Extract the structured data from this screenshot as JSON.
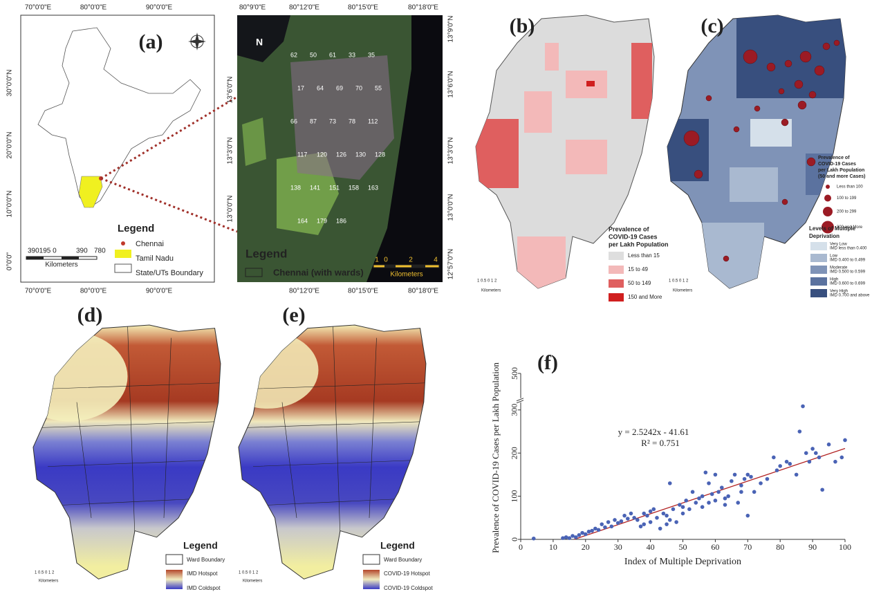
{
  "panels": {
    "a": {
      "label": "(a)",
      "lon_labels_top": [
        "70°0'0\"E",
        "80°0'0\"E",
        "90°0'0\"E"
      ],
      "lon_labels_bottom": [
        "70°0'0\"E",
        "80°0'0\"E",
        "90°0'0\"E"
      ],
      "lat_labels": [
        "30°0'0\"N",
        "20°0'0\"N",
        "10°0'0\"N",
        "0°0'0\""
      ],
      "legend_title": "Legend",
      "legend_items": [
        "Chennai",
        "Tamil Nadu",
        "State/UTs Boundary"
      ],
      "scale_labels": [
        "390195 0",
        "390",
        "780"
      ],
      "scale_unit": "Kilometers"
    },
    "satellite": {
      "lon_labels_top": [
        "80°9'0\"E",
        "80°12'0\"E",
        "80°15'0\"E",
        "80°18'0\"E"
      ],
      "lon_labels_bottom": [
        "80°12'0\"E",
        "80°15'0\"E",
        "80°18'0\"E"
      ],
      "lat_labels_right": [
        "13°9'0\"N",
        "13°6'0\"N",
        "13°3'0\"N",
        "13°0'0\"N",
        "12°57'0\"N"
      ],
      "lat_labels_left": [
        "13°6'0\"N",
        "13°3'0\"N",
        "13°0'0\"N"
      ],
      "north": "N",
      "legend_title": "Legend",
      "legend_item": "Chennai (with wards)",
      "scale_labels": [
        "1",
        "0",
        "2",
        "4"
      ],
      "scale_unit": "Kilometers",
      "ward_numbers": [
        "62",
        "50",
        "61",
        "33",
        "35",
        "17",
        "64",
        "69",
        "70",
        "55",
        "66",
        "87",
        "73",
        "78",
        "112",
        "117",
        "120",
        "126",
        "130",
        "128",
        "138",
        "141",
        "151",
        "158",
        "163",
        "164",
        "179",
        "186"
      ]
    },
    "b": {
      "label": "(b)",
      "legend_title": [
        "Prevalence of",
        "COVID-19 Cases",
        "per Lakh Population"
      ],
      "legend_items": [
        "Less than 15",
        "15 to 49",
        "50 to 149",
        "150 and More"
      ],
      "legend_colors": [
        "#dedede",
        "#f3b9b9",
        "#df5f5f",
        "#d01f1f"
      ],
      "scale_labels": "1 0.5 0   1   2",
      "scale_unit": "Kilometers"
    },
    "c": {
      "label": "(c)",
      "bubble_title": [
        "Prevalence of",
        "COVID-19 Cases",
        "per Lakh Population",
        "(50 and more Cases)"
      ],
      "bubble_items": [
        "Less than 100",
        "100 to 199",
        "200 to 299",
        "300 and More"
      ],
      "legend_title": [
        "Levels of Multiple",
        "Deprivation"
      ],
      "legend_items": [
        [
          "Very Low",
          "IMD less than 0.400"
        ],
        [
          "Low",
          "IMD 0.400 to 0.499"
        ],
        [
          "Moderate",
          "IMD 0.500 to 0.599"
        ],
        [
          "High",
          "IMD 0.600 to 0.699"
        ],
        [
          "Very High",
          "IMD 0.700 and above"
        ]
      ],
      "legend_colors": [
        "#d5e0ea",
        "#a9b9d0",
        "#7f93b7",
        "#5b729f",
        "#384f7e"
      ],
      "scale_labels": "1 0.5 0   1   2",
      "scale_unit": "Kilometers"
    },
    "d": {
      "label": "(d)",
      "legend_title": "Legend",
      "legend_items": [
        "Ward Boundary",
        "IMD Hotspot",
        "IMD Coldspot"
      ],
      "scale_labels": "1 0.5 0   1   2",
      "scale_unit": "Kilometers"
    },
    "e": {
      "label": "(e)",
      "legend_title": "Legend",
      "legend_items": [
        "Ward Boundary",
        "COVID-19 Hotspot",
        "COVID-19 Coldspot"
      ],
      "scale_labels": "1 0.5 0   1   2",
      "scale_unit": "Kilometers"
    }
  },
  "chart_data": {
    "type": "scatter",
    "title": "(f)",
    "x_label": "Index of Multiple Deprivation",
    "y_label": "Prevalence of COVID-19 Cases per Lakh Population",
    "annotations": [
      "y = 2.5242x - 41.61",
      "R² = 0.751"
    ],
    "x": [
      4,
      13,
      14,
      15,
      16,
      17,
      18,
      19,
      20,
      21,
      22,
      23,
      24,
      25,
      26,
      27,
      28,
      29,
      30,
      31,
      32,
      33,
      34,
      35,
      36,
      37,
      38,
      39,
      40,
      40,
      41,
      42,
      43,
      44,
      45,
      46,
      46,
      47,
      48,
      49,
      50,
      51,
      52,
      53,
      54,
      55,
      56,
      57,
      58,
      59,
      60,
      61,
      62,
      63,
      64,
      65,
      66,
      67,
      68,
      69,
      70,
      70,
      71,
      72,
      74,
      76,
      78,
      79,
      80,
      82,
      83,
      85,
      86,
      87,
      88,
      89,
      90,
      91,
      92,
      93,
      95,
      97,
      99,
      100,
      63,
      56,
      60,
      50,
      45,
      38,
      58,
      68
    ],
    "values": [
      2,
      3,
      5,
      3,
      8,
      5,
      10,
      15,
      12,
      18,
      20,
      25,
      22,
      35,
      28,
      40,
      30,
      45,
      38,
      42,
      55,
      48,
      60,
      50,
      45,
      30,
      35,
      55,
      65,
      40,
      70,
      50,
      25,
      60,
      55,
      45,
      130,
      70,
      40,
      80,
      60,
      90,
      70,
      110,
      85,
      95,
      75,
      155,
      130,
      105,
      90,
      110,
      120,
      95,
      100,
      135,
      150,
      85,
      125,
      140,
      150,
      55,
      145,
      110,
      130,
      140,
      190,
      160,
      170,
      180,
      175,
      150,
      250,
      320,
      200,
      180,
      210,
      200,
      190,
      115,
      220,
      180,
      190,
      230,
      80,
      100,
      150,
      75,
      35,
      60,
      85,
      110
    ],
    "color": "#4a63b5",
    "trendline": {
      "slope": 2.5242,
      "intercept": -41.61,
      "color": "#b22222"
    },
    "xlim": [
      0,
      100
    ],
    "xticks": [
      0,
      10,
      20,
      30,
      40,
      50,
      60,
      70,
      80,
      90,
      100
    ],
    "ylim": [
      0,
      500
    ],
    "yticks": [
      0,
      100,
      200,
      300,
      500
    ],
    "y_axis_break": true
  }
}
